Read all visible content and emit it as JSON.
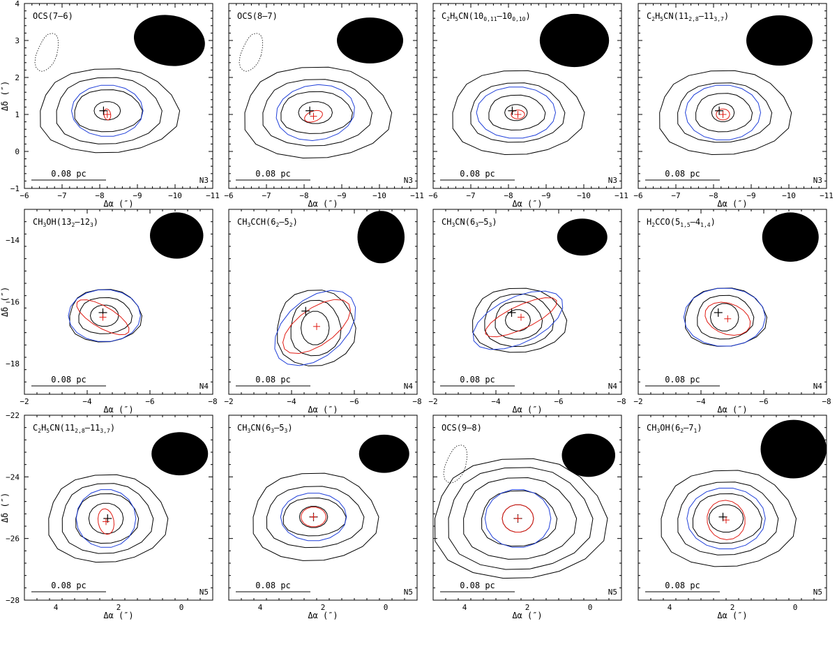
{
  "colors": {
    "contour": "#000000",
    "gaussian_fit": "#1f3fd9",
    "deconvolved_fit": "#e01a12",
    "background": "#ffffff"
  },
  "scale_bar_label": "0.08 pc",
  "rows": [
    {
      "field": "N3",
      "xlabel": "Δα (″)",
      "ylabel": "Δδ (″)",
      "xlim": [
        -6,
        -11
      ],
      "ylim": [
        -1,
        4
      ],
      "xticks": [
        -6,
        -7,
        -8,
        -9,
        -10,
        -11
      ],
      "yticks": [
        -1,
        0,
        1,
        2,
        3,
        4
      ],
      "panels": [
        {
          "title": "OCS(7–6)",
          "center": [
            -8.2,
            1.1
          ],
          "contour_radii": [
            [
              0.35,
              0.25
            ],
            [
              0.9,
              0.6
            ],
            [
              1.4,
              0.95
            ],
            [
              1.85,
              1.2
            ]
          ],
          "blue": [
            0.95,
            0.7,
            0
          ],
          "red": [
            0.09,
            0.15,
            -10
          ],
          "black_cross": [
            -8.1,
            1.1
          ],
          "red_cross": [
            -8.2,
            1.0
          ],
          "beam": [
            -9.85,
            3.0,
            0.95,
            0.68,
            10
          ],
          "dotted": true
        },
        {
          "title": "OCS(8–7)",
          "center": [
            -8.3,
            1.05
          ],
          "contour_radii": [
            [
              0.45,
              0.3
            ],
            [
              0.95,
              0.6
            ],
            [
              1.45,
              0.95
            ],
            [
              1.95,
              1.3
            ]
          ],
          "blue": [
            1.05,
            0.75,
            -8
          ],
          "red": [
            0.25,
            0.14,
            -20
          ],
          "black_cross": [
            -8.15,
            1.1
          ],
          "red_cross": [
            -8.25,
            0.95
          ],
          "beam": [
            -9.75,
            3.0,
            0.88,
            0.62,
            0
          ],
          "dotted": true
        },
        {
          "title": "C2H5CN(10 0,11–10 0,10)",
          "center": [
            -8.2,
            1.05
          ],
          "contour_radii": [
            [
              0.3,
              0.22
            ],
            [
              0.75,
              0.5
            ],
            [
              1.25,
              0.85
            ],
            [
              1.75,
              1.2
            ]
          ],
          "blue": [
            1.05,
            0.7,
            0
          ],
          "red": [
            0.18,
            0.12,
            0
          ],
          "black_cross": [
            -8.1,
            1.1
          ],
          "red_cross": [
            -8.25,
            1.0
          ],
          "beam": [
            -9.75,
            3.0,
            0.92,
            0.72,
            0
          ],
          "dotted": false
        },
        {
          "title": "C2H5CN(11 2,8–11 3,7)",
          "center": [
            -8.25,
            1.05
          ],
          "contour_radii": [
            [
              0.3,
              0.25
            ],
            [
              0.75,
              0.55
            ],
            [
              1.25,
              0.85
            ],
            [
              1.75,
              1.2
            ]
          ],
          "blue": [
            1.0,
            0.75,
            0
          ],
          "red": [
            0.18,
            0.15,
            0
          ],
          "black_cross": [
            -8.15,
            1.1
          ],
          "red_cross": [
            -8.25,
            1.0
          ],
          "beam": [
            -9.75,
            3.0,
            0.88,
            0.68,
            0
          ],
          "dotted": false
        }
      ]
    },
    {
      "field": "N4",
      "xlabel": "Δα (″)",
      "ylabel": "Δδ (″)",
      "xlim": [
        -2,
        -8
      ],
      "ylim": [
        -19,
        -13
      ],
      "xticks": [
        -2,
        -4,
        -6,
        -8
      ],
      "yticks": [
        -14,
        -16,
        -18
      ],
      "panels": [
        {
          "title": "CH3OH(13 2–12 3)",
          "center": [
            -4.55,
            -16.45
          ],
          "contour_radii": [
            [
              0.45,
              0.35
            ],
            [
              0.85,
              0.62
            ],
            [
              1.15,
              0.9
            ]
          ],
          "blue": [
            1.15,
            0.85,
            0
          ],
          "red": [
            0.95,
            0.35,
            30
          ],
          "black_cross": [
            -4.5,
            -16.35
          ],
          "red_cross": [
            -4.5,
            -16.5
          ],
          "beam": [
            -6.85,
            -13.85,
            0.85,
            0.75,
            0
          ],
          "dotted": false
        },
        {
          "title": "CH3CCH(6 2–5 2)",
          "center": [
            -4.75,
            -16.85
          ],
          "contour_radii": [
            [
              0.45,
              0.55
            ],
            [
              0.8,
              0.95
            ],
            [
              1.25,
              1.3
            ]
          ],
          "blue": [
            1.5,
            0.95,
            -40
          ],
          "red": [
            1.25,
            0.6,
            -35
          ],
          "black_cross": [
            -4.45,
            -16.3
          ],
          "red_cross": [
            -4.8,
            -16.8
          ],
          "beam": [
            -6.85,
            -13.9,
            0.75,
            0.85,
            0
          ],
          "dotted": false
        },
        {
          "title": "CH3CN(6 3–5 3)",
          "center": [
            -4.7,
            -16.6
          ],
          "contour_radii": [
            [
              0.4,
              0.35
            ],
            [
              0.75,
              0.65
            ],
            [
              1.1,
              0.9
            ],
            [
              1.5,
              1.1
            ]
          ],
          "blue": [
            1.55,
            0.75,
            -25
          ],
          "red": [
            1.25,
            0.38,
            -25
          ],
          "black_cross": [
            -4.5,
            -16.35
          ],
          "red_cross": [
            -4.8,
            -16.5
          ],
          "beam": [
            -6.75,
            -13.9,
            0.8,
            0.6,
            0
          ],
          "dotted": false
        },
        {
          "title": "H2CCO(5 1,5–4 1,4)",
          "center": [
            -4.75,
            -16.5
          ],
          "contour_radii": [
            [
              0.45,
              0.45
            ],
            [
              0.9,
              0.75
            ],
            [
              1.3,
              1.0
            ]
          ],
          "blue": [
            1.3,
            0.95,
            0
          ],
          "red": [
            0.75,
            0.5,
            20
          ],
          "black_cross": [
            -4.55,
            -16.35
          ],
          "red_cross": [
            -4.85,
            -16.55
          ],
          "beam": [
            -6.85,
            -13.9,
            0.9,
            0.8,
            0
          ],
          "dotted": false
        }
      ]
    },
    {
      "field": "N5",
      "xlabel": "Δα (″)",
      "ylabel": "Δδ (″)",
      "xlim": [
        5,
        -1
      ],
      "ylim": [
        -28,
        -22
      ],
      "xticks": [
        4,
        2,
        0
      ],
      "yticks": [
        -22,
        -24,
        -26,
        -28
      ],
      "panels": [
        {
          "title": "C2H5CN(11 2,8–11 3,7)",
          "center": [
            2.4,
            -25.35
          ],
          "contour_radii": [
            [
              0.55,
              0.5
            ],
            [
              1.0,
              0.85
            ],
            [
              1.45,
              1.2
            ],
            [
              1.9,
              1.5
            ]
          ],
          "blue": [
            0.95,
            0.95,
            0
          ],
          "red": [
            0.25,
            0.42,
            -10
          ],
          "black_cross": [
            2.35,
            -25.35
          ],
          "red_cross": [
            2.4,
            -25.45
          ],
          "beam": [
            0.05,
            -23.25,
            0.9,
            0.7,
            0
          ],
          "dotted": false
        },
        {
          "title": "CH3CN(6 3–5 3)",
          "center": [
            2.3,
            -25.3
          ],
          "contour_radii": [
            [
              0.45,
              0.35
            ],
            [
              1.0,
              0.65
            ],
            [
              1.55,
              1.05
            ],
            [
              2.0,
              1.5
            ]
          ],
          "blue": [
            1.05,
            0.78,
            0
          ],
          "red": [
            0.4,
            0.32,
            0
          ],
          "black_cross": [
            2.3,
            -25.3
          ],
          "red_cross": [
            2.3,
            -25.3
          ],
          "beam": [
            0.05,
            -23.25,
            0.8,
            0.62,
            0
          ],
          "dotted": false
        },
        {
          "title": "OCS(9–8)",
          "center": [
            2.3,
            -25.35
          ],
          "contour_radii": [
            [
              0.5,
              0.45
            ],
            [
              1.2,
              0.95
            ],
            [
              1.8,
              1.4
            ],
            [
              2.3,
              1.75
            ],
            [
              2.75,
              2.05
            ]
          ],
          "blue": [
            1.05,
            0.95,
            0
          ],
          "red": [
            0.5,
            0.45,
            0
          ],
          "black_cross": [
            2.3,
            -25.35
          ],
          "red_cross": [
            2.3,
            -25.35
          ],
          "beam": [
            0.05,
            -23.3,
            0.85,
            0.7,
            0
          ],
          "dotted": true
        },
        {
          "title": "CH3OH(6 2–7 1)",
          "center": [
            2.2,
            -25.35
          ],
          "contour_radii": [
            [
              0.55,
              0.45
            ],
            [
              1.1,
              0.85
            ],
            [
              1.6,
              1.25
            ],
            [
              2.15,
              1.65
            ]
          ],
          "blue": [
            1.25,
            1.0,
            0
          ],
          "red": [
            0.6,
            0.65,
            -30
          ],
          "black_cross": [
            2.3,
            -25.3
          ],
          "red_cross": [
            2.2,
            -25.4
          ],
          "beam": [
            0.05,
            -23.1,
            1.05,
            0.95,
            0
          ],
          "dotted": false
        }
      ]
    }
  ]
}
